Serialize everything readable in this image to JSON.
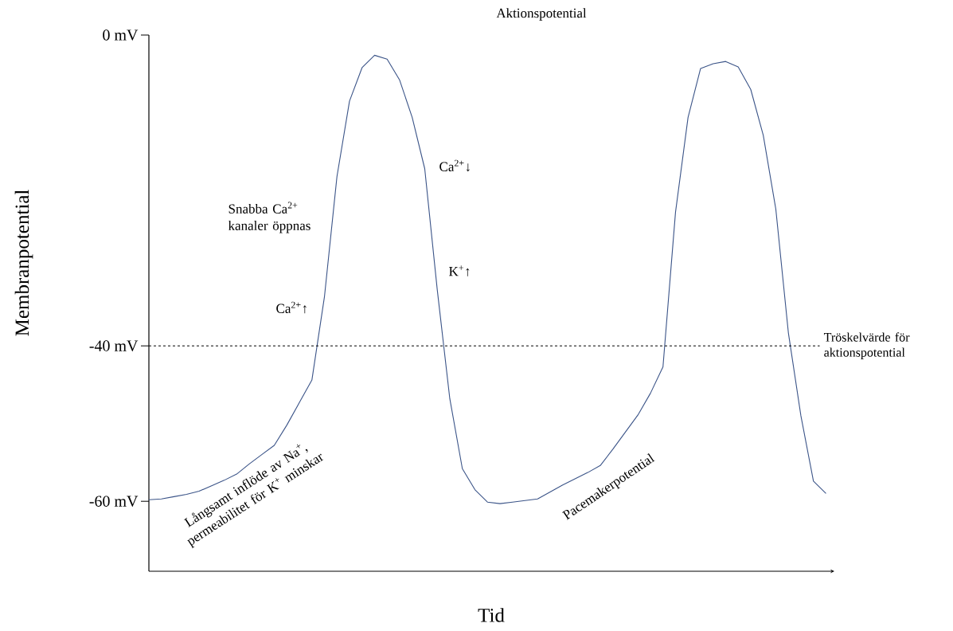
{
  "chart_data": {
    "type": "line",
    "title": "Aktionspotential",
    "xlabel": "Tid",
    "ylabel": "Membranpotential",
    "categories": [
      null,
      null,
      null,
      null,
      null,
      null,
      null,
      null,
      null,
      null,
      null,
      null,
      null,
      null,
      null,
      null,
      null,
      null,
      null,
      null,
      null,
      null,
      null,
      null,
      null,
      null,
      null,
      null,
      null,
      null,
      null,
      null,
      null,
      null,
      null,
      null,
      null,
      null,
      null,
      null,
      null,
      null,
      null,
      null,
      null,
      null,
      null,
      null,
      null,
      null,
      null,
      null,
      null,
      null,
      null
    ],
    "series": [
      {
        "color": "#3b5488",
        "values": [
          -59.8,
          -59.7,
          -59.4,
          -59.1,
          -58.7,
          -58.0,
          -57.3,
          -56.5,
          -55.2,
          -54.0,
          -52.8,
          -50.2,
          -47.3,
          -44.4,
          -33.7,
          -18.2,
          -8.5,
          -4.2,
          -2.6,
          -3.1,
          -5.8,
          -10.6,
          -17.2,
          -32.8,
          -46.8,
          -55.8,
          -58.5,
          -60.1,
          -60.3,
          -60.1,
          -59.9,
          -59.7,
          -58.8,
          -57.9,
          -57.1,
          -56.3,
          -55.4,
          -53.3,
          -51.1,
          -48.9,
          -46.1,
          -42.7,
          -22.8,
          -10.6,
          -4.3,
          -3.7,
          -3.4,
          -4.1,
          -7.0,
          -12.9,
          -22.4,
          -38.3,
          -49.0,
          -57.4,
          -59.0
        ]
      }
    ],
    "ylim": [
      -69,
      0
    ],
    "yticks": [
      {
        "value": 0,
        "label": "0 mV"
      },
      {
        "value": -40,
        "label": "-40 mV"
      },
      {
        "value": -60,
        "label": "-60 mV"
      }
    ],
    "ref_lines": [
      {
        "axis": "y",
        "value": -40,
        "label": "Tröskelvärde för aktionspotential",
        "color": "#000000",
        "line_style": "dashed"
      }
    ],
    "annotations": [
      "Snabba Ca$^{2+}$ kanaler öppnas",
      "Ca$^{2+}$↑",
      "Ca$^{2+}$↓",
      "K$^{+}$↑",
      "Långsamt inflöde av Na$^{+}$, permeabilitet för K$^{+}$ minskar",
      "Pacemakerpotential"
    ]
  }
}
